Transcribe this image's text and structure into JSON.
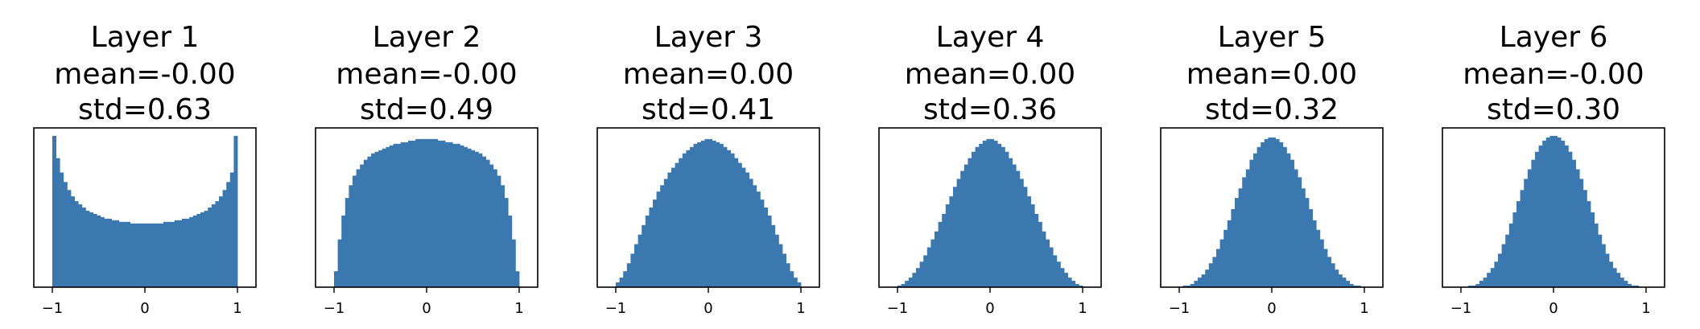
{
  "colors": {
    "bar": "#3b78b0",
    "axis": "#000000",
    "background": "#ffffff"
  },
  "chart_data": [
    {
      "type": "histogram",
      "title": [
        "Layer 1",
        "mean=-0.00",
        "std=0.63"
      ],
      "xlim": [
        -1.2,
        1.2
      ],
      "xticks": [
        -1,
        0,
        1
      ],
      "xtick_labels": [
        "−1",
        "0",
        "1"
      ],
      "y_ticks_shown": false,
      "bins": {
        "start": -1.0,
        "end": 1.0,
        "count": 50
      },
      "values": [
        0.95,
        0.81,
        0.72,
        0.66,
        0.61,
        0.57,
        0.54,
        0.52,
        0.5,
        0.48,
        0.47,
        0.46,
        0.45,
        0.44,
        0.43,
        0.43,
        0.42,
        0.42,
        0.41,
        0.41,
        0.41,
        0.4,
        0.4,
        0.4,
        0.4,
        0.4,
        0.4,
        0.4,
        0.4,
        0.4,
        0.41,
        0.41,
        0.41,
        0.42,
        0.42,
        0.43,
        0.43,
        0.44,
        0.45,
        0.46,
        0.47,
        0.48,
        0.5,
        0.52,
        0.54,
        0.57,
        0.61,
        0.66,
        0.72,
        0.95
      ],
      "ylim": [
        0,
        1.0
      ]
    },
    {
      "type": "histogram",
      "title": [
        "Layer 2",
        "mean=-0.00",
        "std=0.49"
      ],
      "xlim": [
        -1.2,
        1.2
      ],
      "xticks": [
        -1,
        0,
        1
      ],
      "xtick_labels": [
        "−1",
        "0",
        "1"
      ],
      "y_ticks_shown": false,
      "bins": {
        "start": -1.0,
        "end": 1.0,
        "count": 50
      },
      "values": [
        0.1,
        0.3,
        0.45,
        0.56,
        0.64,
        0.7,
        0.74,
        0.77,
        0.8,
        0.82,
        0.84,
        0.85,
        0.86,
        0.87,
        0.88,
        0.89,
        0.9,
        0.9,
        0.91,
        0.91,
        0.92,
        0.92,
        0.93,
        0.93,
        0.93,
        0.93,
        0.93,
        0.93,
        0.92,
        0.92,
        0.91,
        0.91,
        0.9,
        0.9,
        0.89,
        0.88,
        0.87,
        0.86,
        0.85,
        0.84,
        0.82,
        0.8,
        0.77,
        0.74,
        0.7,
        0.64,
        0.56,
        0.45,
        0.3,
        0.1
      ],
      "ylim": [
        0,
        1.0
      ]
    },
    {
      "type": "histogram",
      "title": [
        "Layer 3",
        "mean=0.00",
        "std=0.41"
      ],
      "xlim": [
        -1.2,
        1.2
      ],
      "xticks": [
        -1,
        0,
        1
      ],
      "xtick_labels": [
        "−1",
        "0",
        "1"
      ],
      "y_ticks_shown": false,
      "bins": {
        "start": -1.0,
        "end": 1.0,
        "count": 50
      },
      "values": [
        0.03,
        0.06,
        0.1,
        0.15,
        0.21,
        0.27,
        0.33,
        0.39,
        0.45,
        0.5,
        0.55,
        0.6,
        0.64,
        0.68,
        0.72,
        0.75,
        0.78,
        0.81,
        0.84,
        0.86,
        0.88,
        0.9,
        0.91,
        0.92,
        0.93,
        0.93,
        0.92,
        0.91,
        0.9,
        0.88,
        0.86,
        0.84,
        0.81,
        0.78,
        0.75,
        0.72,
        0.68,
        0.64,
        0.6,
        0.55,
        0.5,
        0.45,
        0.39,
        0.33,
        0.27,
        0.21,
        0.15,
        0.1,
        0.06,
        0.03
      ],
      "ylim": [
        0,
        1.0
      ]
    },
    {
      "type": "histogram",
      "title": [
        "Layer 4",
        "mean=0.00",
        "std=0.36"
      ],
      "xlim": [
        -1.2,
        1.2
      ],
      "xticks": [
        -1,
        0,
        1
      ],
      "xtick_labels": [
        "−1",
        "0",
        "1"
      ],
      "y_ticks_shown": false,
      "bins": {
        "start": -1.0,
        "end": 1.0,
        "count": 50
      },
      "values": [
        0.01,
        0.02,
        0.04,
        0.06,
        0.09,
        0.12,
        0.16,
        0.2,
        0.25,
        0.3,
        0.35,
        0.41,
        0.46,
        0.52,
        0.57,
        0.63,
        0.68,
        0.73,
        0.77,
        0.81,
        0.85,
        0.88,
        0.9,
        0.92,
        0.93,
        0.93,
        0.92,
        0.9,
        0.88,
        0.85,
        0.81,
        0.77,
        0.73,
        0.68,
        0.63,
        0.57,
        0.52,
        0.46,
        0.41,
        0.35,
        0.3,
        0.25,
        0.2,
        0.16,
        0.12,
        0.09,
        0.06,
        0.04,
        0.02,
        0.01
      ],
      "ylim": [
        0,
        1.0
      ]
    },
    {
      "type": "histogram",
      "title": [
        "Layer 5",
        "mean=0.00",
        "std=0.32"
      ],
      "xlim": [
        -1.2,
        1.2
      ],
      "xticks": [
        -1,
        0,
        1
      ],
      "xtick_labels": [
        "−1",
        "0",
        "1"
      ],
      "y_ticks_shown": false,
      "bins": {
        "start": -1.0,
        "end": 1.0,
        "count": 50
      },
      "values": [
        0.0,
        0.01,
        0.01,
        0.02,
        0.04,
        0.06,
        0.08,
        0.11,
        0.15,
        0.19,
        0.24,
        0.3,
        0.36,
        0.42,
        0.49,
        0.56,
        0.62,
        0.69,
        0.74,
        0.8,
        0.84,
        0.88,
        0.91,
        0.93,
        0.94,
        0.94,
        0.93,
        0.91,
        0.88,
        0.84,
        0.8,
        0.74,
        0.69,
        0.62,
        0.56,
        0.49,
        0.42,
        0.36,
        0.3,
        0.24,
        0.19,
        0.15,
        0.11,
        0.08,
        0.06,
        0.04,
        0.02,
        0.01,
        0.01,
        0.0
      ],
      "ylim": [
        0,
        1.0
      ]
    },
    {
      "type": "histogram",
      "title": [
        "Layer 6",
        "mean=-0.00",
        "std=0.30"
      ],
      "xlim": [
        -1.2,
        1.2
      ],
      "xticks": [
        -1,
        0,
        1
      ],
      "xtick_labels": [
        "−1",
        "0",
        "1"
      ],
      "y_ticks_shown": false,
      "bins": {
        "start": -1.0,
        "end": 1.0,
        "count": 50
      },
      "values": [
        0.0,
        0.0,
        0.01,
        0.01,
        0.02,
        0.04,
        0.06,
        0.09,
        0.12,
        0.16,
        0.21,
        0.27,
        0.33,
        0.4,
        0.47,
        0.54,
        0.61,
        0.68,
        0.74,
        0.8,
        0.85,
        0.89,
        0.92,
        0.94,
        0.95,
        0.95,
        0.94,
        0.92,
        0.89,
        0.85,
        0.8,
        0.74,
        0.68,
        0.61,
        0.54,
        0.47,
        0.4,
        0.33,
        0.27,
        0.21,
        0.16,
        0.12,
        0.09,
        0.06,
        0.04,
        0.02,
        0.01,
        0.01,
        0.0,
        0.0
      ],
      "ylim": [
        0,
        1.0
      ]
    }
  ]
}
